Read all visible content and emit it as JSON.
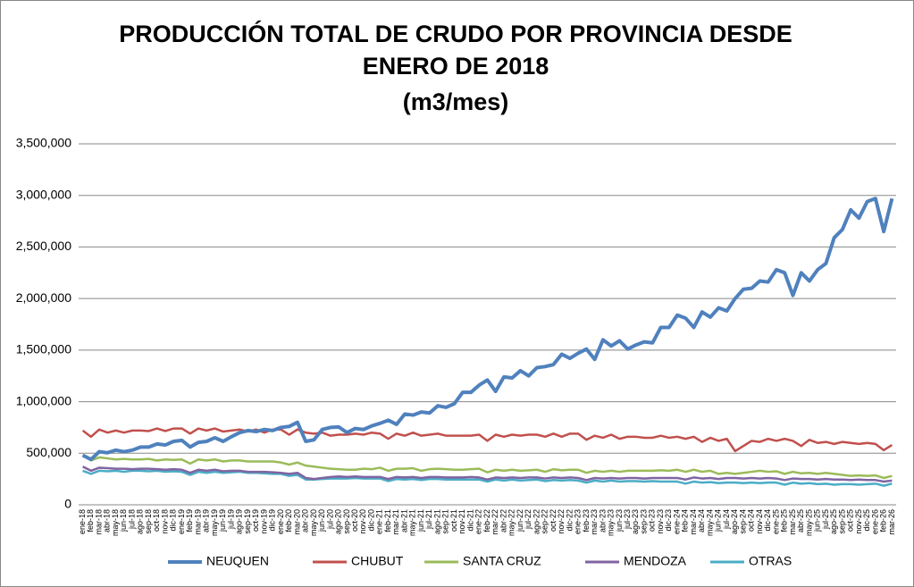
{
  "chart_data": {
    "type": "line",
    "title": [
      "PRODUCCIÓN TOTAL DE CRUDO POR PROVINCIA DESDE",
      "ENERO DE 2018",
      "(m3/mes)"
    ],
    "categories": [
      "ene-18",
      "feb-18",
      "mar-18",
      "abr-18",
      "may-18",
      "jun-18",
      "jul-18",
      "ago-18",
      "sep-18",
      "oct-18",
      "nov-18",
      "dic-18",
      "ene-19",
      "feb-19",
      "mar-19",
      "abr-19",
      "may-19",
      "jun-19",
      "jul-19",
      "ago-19",
      "sep-19",
      "oct-19",
      "nov-19",
      "dic-19",
      "ene-20",
      "feb-20",
      "mar-20",
      "abr-20",
      "may-20",
      "jun-20",
      "jul-20",
      "ago-20",
      "sep-20",
      "oct-20",
      "nov-20",
      "dic-20",
      "ene-21",
      "feb-21",
      "mar-21",
      "abr-21",
      "may-21",
      "jun-21",
      "jul-21",
      "ago-21",
      "sep-21",
      "oct-21",
      "nov-21",
      "dic-21",
      "ene-22",
      "feb-22",
      "mar-22",
      "abr-22",
      "may-22",
      "jun-22",
      "jul-22",
      "ago-22",
      "sep-22",
      "oct-22",
      "nov-22",
      "dic-22",
      "ene-23",
      "feb-23",
      "mar-23",
      "abr-23",
      "may-23",
      "jun-23",
      "jul-23",
      "ago-23",
      "sep-23",
      "oct-23",
      "nov-23",
      "dic-23",
      "ene-24",
      "feb-24",
      "mar-24",
      "abr-24",
      "may-24",
      "jun-24",
      "jul-24",
      "ago-24",
      "sep-24",
      "oct-24",
      "nov-24",
      "dic-24",
      "ene-25",
      "feb-25",
      "mar-25",
      "abr-25",
      "may-25",
      "jun-25",
      "jul-25",
      "ago-25",
      "sep-25",
      "oct-25",
      "nov-25",
      "dic-25",
      "ene-26",
      "feb-26",
      "mar-26"
    ],
    "series": [
      {
        "name": "NEUQUEN",
        "color": "#4f81bd",
        "values": [
          480000,
          440000,
          515000,
          505000,
          530000,
          515000,
          530000,
          560000,
          560000,
          590000,
          580000,
          615000,
          625000,
          560000,
          605000,
          615000,
          650000,
          615000,
          660000,
          700000,
          720000,
          710000,
          730000,
          720000,
          750000,
          760000,
          800000,
          615000,
          630000,
          730000,
          750000,
          755000,
          700000,
          740000,
          730000,
          765000,
          790000,
          820000,
          780000,
          880000,
          870000,
          900000,
          890000,
          960000,
          945000,
          980000,
          1090000,
          1090000,
          1160000,
          1210000,
          1100000,
          1240000,
          1230000,
          1300000,
          1250000,
          1330000,
          1340000,
          1360000,
          1460000,
          1420000,
          1470000,
          1510000,
          1410000,
          1600000,
          1540000,
          1590000,
          1510000,
          1550000,
          1580000,
          1570000,
          1720000,
          1720000,
          1840000,
          1810000,
          1720000,
          1870000,
          1820000,
          1910000,
          1880000,
          2000000,
          2090000,
          2100000,
          2170000,
          2160000,
          2280000,
          2250000,
          2030000,
          2250000,
          2170000,
          2280000,
          2340000,
          2590000,
          2670000,
          2860000,
          2780000,
          2940000,
          2970000,
          2650000,
          2970000
        ]
      },
      {
        "name": "CHUBUT",
        "color": "#c0504d",
        "values": [
          720000,
          660000,
          730000,
          700000,
          720000,
          700000,
          720000,
          720000,
          715000,
          740000,
          715000,
          740000,
          740000,
          690000,
          740000,
          720000,
          740000,
          710000,
          720000,
          730000,
          710000,
          730000,
          700000,
          730000,
          730000,
          680000,
          730000,
          700000,
          690000,
          700000,
          670000,
          680000,
          680000,
          690000,
          680000,
          700000,
          690000,
          640000,
          690000,
          670000,
          700000,
          670000,
          680000,
          690000,
          670000,
          670000,
          670000,
          670000,
          680000,
          620000,
          680000,
          660000,
          680000,
          670000,
          680000,
          680000,
          660000,
          690000,
          660000,
          690000,
          690000,
          630000,
          670000,
          650000,
          680000,
          640000,
          660000,
          660000,
          650000,
          650000,
          670000,
          650000,
          660000,
          640000,
          660000,
          610000,
          650000,
          620000,
          640000,
          520000,
          570000,
          620000,
          610000,
          640000,
          620000,
          640000,
          620000,
          570000,
          630000,
          600000,
          610000,
          590000,
          610000,
          600000,
          590000,
          600000,
          590000,
          530000,
          580000
        ]
      },
      {
        "name": "SANTA CRUZ",
        "color": "#9bbb59",
        "values": [
          480000,
          430000,
          460000,
          450000,
          440000,
          445000,
          440000,
          440000,
          445000,
          430000,
          440000,
          435000,
          440000,
          400000,
          440000,
          430000,
          440000,
          420000,
          430000,
          430000,
          420000,
          420000,
          420000,
          420000,
          410000,
          390000,
          410000,
          380000,
          370000,
          360000,
          350000,
          345000,
          340000,
          340000,
          350000,
          345000,
          360000,
          330000,
          350000,
          350000,
          355000,
          330000,
          345000,
          350000,
          345000,
          340000,
          340000,
          345000,
          350000,
          315000,
          340000,
          330000,
          340000,
          330000,
          335000,
          340000,
          320000,
          345000,
          335000,
          340000,
          340000,
          310000,
          330000,
          320000,
          330000,
          320000,
          330000,
          330000,
          330000,
          330000,
          335000,
          330000,
          340000,
          320000,
          340000,
          320000,
          330000,
          300000,
          310000,
          300000,
          310000,
          320000,
          330000,
          320000,
          325000,
          300000,
          320000,
          305000,
          310000,
          300000,
          310000,
          300000,
          290000,
          280000,
          285000,
          280000,
          285000,
          260000,
          280000
        ]
      },
      {
        "name": "MENDOZA",
        "color": "#8064a2",
        "values": [
          370000,
          330000,
          360000,
          355000,
          350000,
          350000,
          345000,
          350000,
          350000,
          345000,
          340000,
          345000,
          340000,
          310000,
          340000,
          330000,
          340000,
          325000,
          330000,
          330000,
          320000,
          320000,
          320000,
          315000,
          310000,
          300000,
          310000,
          260000,
          250000,
          260000,
          270000,
          275000,
          270000,
          275000,
          270000,
          270000,
          270000,
          250000,
          270000,
          265000,
          270000,
          260000,
          270000,
          270000,
          265000,
          265000,
          265000,
          270000,
          265000,
          245000,
          265000,
          260000,
          265000,
          260000,
          265000,
          265000,
          255000,
          265000,
          260000,
          265000,
          260000,
          240000,
          260000,
          255000,
          260000,
          255000,
          260000,
          260000,
          255000,
          260000,
          260000,
          260000,
          260000,
          245000,
          265000,
          255000,
          260000,
          250000,
          260000,
          260000,
          255000,
          260000,
          255000,
          260000,
          255000,
          240000,
          255000,
          250000,
          250000,
          245000,
          250000,
          245000,
          245000,
          240000,
          245000,
          240000,
          240000,
          225000,
          235000
        ]
      },
      {
        "name": "OTRAS",
        "color": "#4bacc6",
        "values": [
          330000,
          300000,
          330000,
          325000,
          330000,
          320000,
          330000,
          330000,
          325000,
          330000,
          320000,
          325000,
          320000,
          290000,
          320000,
          310000,
          320000,
          310000,
          315000,
          320000,
          310000,
          310000,
          305000,
          300000,
          300000,
          280000,
          290000,
          245000,
          245000,
          250000,
          255000,
          255000,
          255000,
          260000,
          255000,
          255000,
          255000,
          230000,
          250000,
          245000,
          250000,
          240000,
          250000,
          250000,
          245000,
          245000,
          245000,
          245000,
          245000,
          225000,
          245000,
          235000,
          245000,
          235000,
          240000,
          245000,
          230000,
          240000,
          235000,
          240000,
          235000,
          215000,
          235000,
          225000,
          235000,
          225000,
          230000,
          230000,
          225000,
          230000,
          225000,
          225000,
          225000,
          205000,
          225000,
          215000,
          220000,
          210000,
          215000,
          215000,
          210000,
          215000,
          210000,
          215000,
          215000,
          195000,
          215000,
          205000,
          210000,
          200000,
          205000,
          195000,
          200000,
          200000,
          195000,
          200000,
          205000,
          185000,
          205000
        ]
      }
    ],
    "ylim": [
      0,
      3500000
    ],
    "yticks": [
      0,
      {
        "value": 500000,
        "label": "500,000"
      },
      {
        "value": 1000000,
        "label": "1,000,000"
      },
      {
        "value": 1500000,
        "label": "1,500,000"
      },
      {
        "value": 2000000,
        "label": "2,000,000"
      },
      {
        "value": 2500000,
        "label": "2,500,000"
      },
      {
        "value": 3000000,
        "label": "3,000,000"
      },
      {
        "value": 3500000,
        "label": "3,500,000"
      }
    ],
    "grid": true,
    "legend": "bottom"
  }
}
